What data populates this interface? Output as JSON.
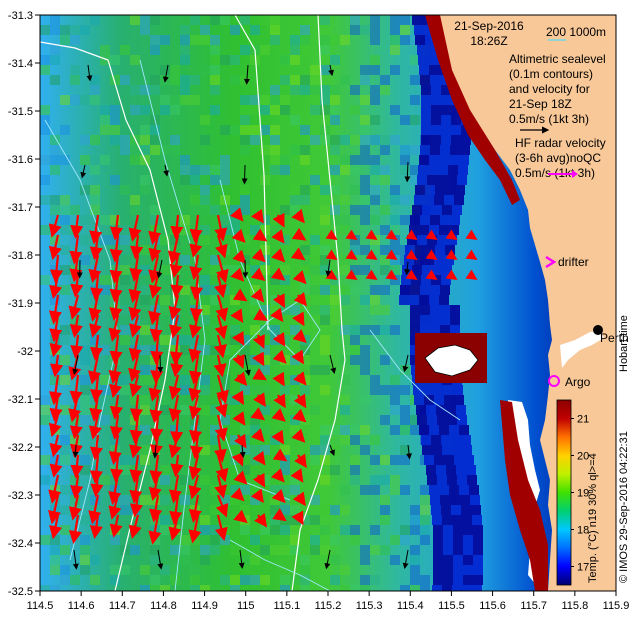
{
  "map": {
    "date": "21-Sep-2016",
    "time": "18:26Z",
    "bathymetry_legend": "200  1000m",
    "altimetry_lines": [
      "Altimetric sealevel",
      "(0.1m contours)",
      "and velocity for",
      "21-Sep 18Z",
      "0.5m/s (1kt 3h)"
    ],
    "hf_lines": [
      "HF radar velocity",
      "(3-6h avg)noQC",
      "0.5m/s (1kt 3h)"
    ],
    "drifter_label": "drifter",
    "perth_label": "Perth",
    "argo_label": "Argo",
    "hobart_label": "Hobart time",
    "colorbar_label": "Temp. (°C) n19 30% ql>=4",
    "footer": "© IMOS 29-Sep-2016 04:22:31",
    "x_ticks": [
      "114.5",
      "114.6",
      "114.7",
      "114.8",
      "114.9",
      "115",
      "115.1",
      "115.2",
      "115.3",
      "115.4",
      "115.5",
      "115.6",
      "115.7",
      "115.8",
      "115.9"
    ],
    "y_ticks": [
      "-31.3",
      "-31.4",
      "-31.5",
      "-31.6",
      "-31.7",
      "-31.8",
      "-31.9",
      "-32",
      "-32.1",
      "-32.2",
      "-32.3",
      "-32.4",
      "-32.5"
    ],
    "colorbar": {
      "min": 16.5,
      "max": 21.5,
      "ticks": [
        "17",
        "18",
        "19",
        "20",
        "21"
      ],
      "stops": [
        "#00006e",
        "#0000ff",
        "#0070ff",
        "#00c8ff",
        "#00d070",
        "#40e000",
        "#c0f000",
        "#ffd000",
        "#ff7000",
        "#c00000",
        "#8b0000"
      ]
    },
    "colors": {
      "land": "#f8c898",
      "ocean_deep": "#00008b",
      "hf_vector": "#ff0000",
      "alti_vector": "#000000",
      "contour": "#a0e8ff",
      "bathy": "#ffffff",
      "drifter": "#ff00ff",
      "argo": "#ff00ff"
    }
  }
}
